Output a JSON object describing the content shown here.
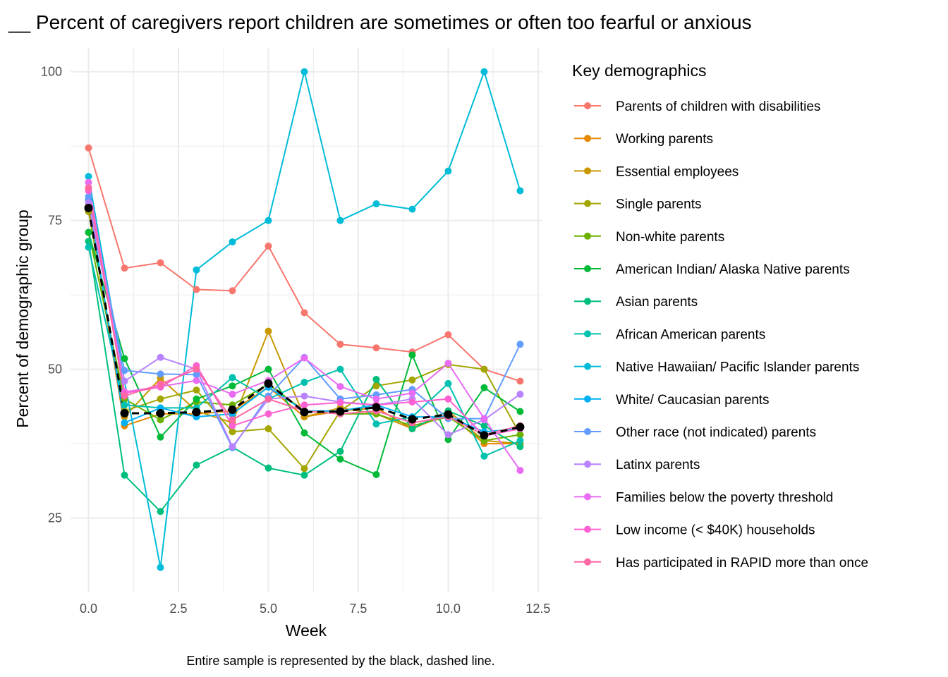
{
  "chart_data": {
    "type": "line",
    "title": "__ Percent of caregivers report children are sometimes or often too fearful or anxious",
    "xlabel": "Week",
    "ylabel": "Percent of demographic group",
    "caption": "Entire sample is represented by the black, dashed line.",
    "xlim": [
      -0.5,
      12.6
    ],
    "ylim": [
      12.5,
      104
    ],
    "x_ticks": [
      0,
      2.5,
      5,
      7.5,
      10,
      12.5
    ],
    "x_tick_labels": [
      "0.0",
      "2.5",
      "5.0",
      "7.5",
      "10.0",
      "12.5"
    ],
    "y_ticks": [
      25,
      50,
      75,
      100
    ],
    "y_tick_labels": [
      "25",
      "50",
      "75",
      "100"
    ],
    "grid": true,
    "legend": {
      "title": "Key demographics",
      "position": "right"
    },
    "x": [
      0,
      1,
      2,
      3,
      4,
      5,
      6,
      7,
      8,
      9,
      10,
      11,
      12
    ],
    "series": [
      {
        "name": "Parents of children with disabilities",
        "color": "#F8766D",
        "values": [
          87.2,
          67.0,
          67.9,
          63.4,
          63.2,
          70.7,
          59.5,
          54.2,
          53.6,
          52.9,
          55.8,
          50.0,
          48.0
        ]
      },
      {
        "name": "Working parents",
        "color": "#E58700",
        "values": [
          77.5,
          40.5,
          42.5,
          42.5,
          43.0,
          47.0,
          42.0,
          43.0,
          43.5,
          40.0,
          42.5,
          37.5,
          37.5
        ]
      },
      {
        "name": "Essential employees",
        "color": "#C99800",
        "values": [
          77.0,
          42.0,
          48.5,
          43.0,
          41.0,
          56.4,
          42.0,
          43.5,
          42.5,
          40.0,
          43.0,
          38.0,
          37.5
        ]
      },
      {
        "name": "Single parents",
        "color": "#A3A500",
        "values": [
          76.5,
          43.0,
          45.0,
          46.5,
          39.5,
          40.0,
          33.3,
          43.0,
          47.2,
          48.2,
          50.8,
          50.0,
          39.0
        ]
      },
      {
        "name": "Non-white parents",
        "color": "#6BB100",
        "values": [
          73.0,
          45.0,
          41.5,
          44.5,
          44.0,
          47.5,
          43.0,
          42.5,
          42.5,
          40.5,
          42.0,
          38.0,
          39.0
        ]
      },
      {
        "name": "American Indian/ Alaska Native parents",
        "color": "#00BA38",
        "values": [
          73.0,
          51.8,
          38.6,
          45.0,
          47.2,
          50.0,
          39.3,
          34.9,
          32.3,
          52.4,
          38.2,
          46.9,
          42.9
        ]
      },
      {
        "name": "Asian parents",
        "color": "#00BF7D",
        "values": [
          71.5,
          32.2,
          26.1,
          33.9,
          36.9,
          33.4,
          32.2,
          36.2,
          48.3,
          40.0,
          43.0,
          40.5,
          37.0
        ]
      },
      {
        "name": "African American parents",
        "color": "#00C0AF",
        "values": [
          70.5,
          44.0,
          43.5,
          43.5,
          48.6,
          45.0,
          47.8,
          50.0,
          40.8,
          42.0,
          47.6,
          35.4,
          38.0
        ]
      },
      {
        "name": "Native Hawaiian/ Pacific Islander parents",
        "color": "#00BCD8",
        "values": [
          82.4,
          48.0,
          16.7,
          66.7,
          71.4,
          75.0,
          100.0,
          75.0,
          77.8,
          76.9,
          83.3,
          100.0,
          80.0
        ]
      },
      {
        "name": "White/ Caucasian parents",
        "color": "#00B0F6",
        "values": [
          78.5,
          41.0,
          43.5,
          42.0,
          42.5,
          47.0,
          43.0,
          43.0,
          44.0,
          42.0,
          42.0,
          39.5,
          40.0
        ]
      },
      {
        "name": "Other race (not indicated) parents",
        "color": "#619CFF",
        "values": [
          79.0,
          49.8,
          49.2,
          49.1,
          36.8,
          45.5,
          52.0,
          45.0,
          45.7,
          46.6,
          41.7,
          41.7,
          54.2
        ]
      },
      {
        "name": "Latinx parents",
        "color": "#B983FF",
        "values": [
          78.0,
          48.0,
          52.0,
          50.0,
          37.0,
          45.0,
          45.5,
          44.5,
          44.0,
          45.0,
          39.0,
          41.5,
          45.8
        ]
      },
      {
        "name": "Families below the poverty threshold",
        "color": "#E76BF3",
        "values": [
          81.4,
          46.2,
          47.1,
          48.1,
          45.8,
          48.1,
          51.9,
          47.1,
          45.0,
          46.0,
          51.0,
          41.7,
          33.0
        ]
      },
      {
        "name": "Low income (< $40K) households",
        "color": "#FD61D1",
        "values": [
          80.0,
          46.0,
          47.0,
          50.6,
          40.5,
          42.5,
          44.0,
          44.4,
          44.0,
          44.5,
          45.0,
          38.8,
          40.0
        ]
      },
      {
        "name": "Has participated in RAPID more than once",
        "color": "#FF67A4",
        "values": [
          80.5,
          45.5,
          47.5,
          50.0,
          41.5,
          45.0,
          43.0,
          42.5,
          43.0,
          41.0,
          42.0,
          39.0,
          40.5
        ]
      }
    ],
    "overall": {
      "color": "#000000",
      "dashed": true,
      "values": [
        77.1,
        42.6,
        42.6,
        42.8,
        43.2,
        47.6,
        42.8,
        42.9,
        43.6,
        41.6,
        42.4,
        38.9,
        40.3
      ]
    }
  }
}
